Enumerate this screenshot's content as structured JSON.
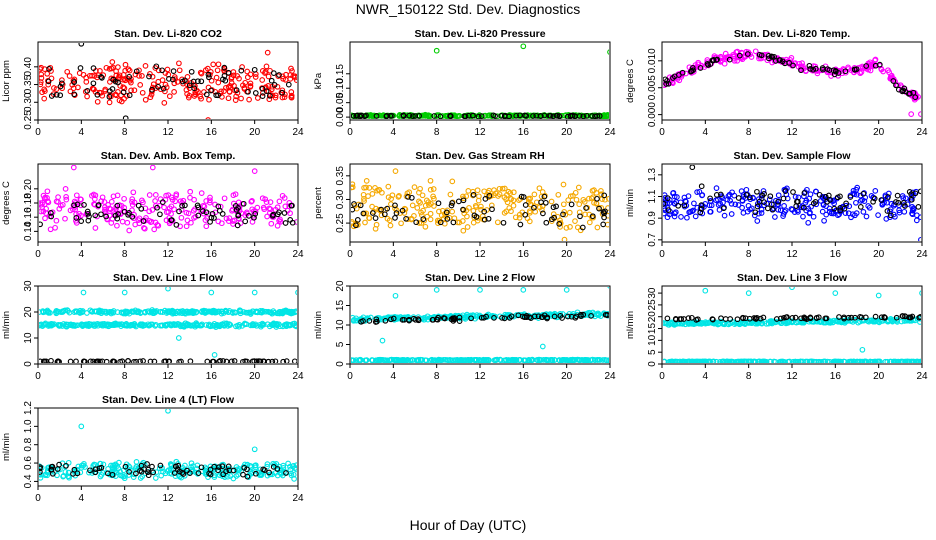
{
  "title": "NWR_150122  Std. Dev. Diagnostics",
  "xlabel": "Hour of Day (UTC)",
  "chart_data": [
    {
      "type": "scatter",
      "title": "Stan. Dev. Li-820 CO2",
      "ylabel": "Licor ppm",
      "xlim": [
        0,
        24
      ],
      "ylim": [
        0.25,
        0.47
      ],
      "yticks": [
        0.25,
        0.3,
        0.35,
        0.4
      ],
      "ytick_labels": [
        "0.25",
        "0.30",
        "0.35",
        "0.40"
      ],
      "xticks": [
        0,
        4,
        8,
        12,
        16,
        20,
        24
      ],
      "series": [
        {
          "color": "#ff0000",
          "pattern": {
            "kind": "band",
            "base": 0.355,
            "spread": 0.045,
            "noise": 0.02
          }
        },
        {
          "color": "#000000",
          "pattern": {
            "kind": "band",
            "base": 0.355,
            "spread": 0.04,
            "noise": 0.015
          },
          "sparse": true
        }
      ],
      "outliers": [
        {
          "x": 4.0,
          "y": 0.465,
          "color": "#000000"
        },
        {
          "x": 8.1,
          "y": 0.255,
          "color": "#000000"
        },
        {
          "x": 15.7,
          "y": 0.25,
          "color": "#ff0000"
        },
        {
          "x": 21.2,
          "y": 0.44,
          "color": "#ff0000"
        }
      ]
    },
    {
      "type": "scatter",
      "title": "Stan. Dev. Li-820 Pressure",
      "ylabel": "kPa",
      "xlim": [
        0,
        24
      ],
      "ylim": [
        -0.01,
        0.26
      ],
      "yticks": [
        0.0,
        0.05,
        0.1,
        0.15
      ],
      "ytick_labels": [
        "0.00",
        "0.05",
        "0.10",
        "0.15"
      ],
      "xticks": [
        0,
        4,
        8,
        12,
        16,
        20,
        24
      ],
      "series": [
        {
          "color": "#00cc00",
          "pattern": {
            "kind": "flat",
            "base": 0.005,
            "noise": 0.002
          }
        },
        {
          "color": "#000000",
          "pattern": {
            "kind": "flat",
            "base": 0.004,
            "noise": 0.002
          },
          "sparse": true
        }
      ],
      "outliers": [
        {
          "x": 8.0,
          "y": 0.23,
          "color": "#00cc00"
        },
        {
          "x": 16.0,
          "y": 0.245,
          "color": "#00cc00"
        },
        {
          "x": 24.0,
          "y": 0.225,
          "color": "#00cc00"
        }
      ]
    },
    {
      "type": "scatter",
      "title": "Stan. Dev. Li-820 Temp.",
      "ylabel": "degrees C",
      "xlim": [
        0,
        24
      ],
      "ylim": [
        -0.001,
        0.0135
      ],
      "yticks": [
        0.0,
        0.005,
        0.01
      ],
      "ytick_labels": [
        "0.000",
        "0.005",
        "0.010"
      ],
      "xticks": [
        0,
        4,
        8,
        12,
        16,
        20,
        24
      ],
      "series": [
        {
          "color": "#ff00ff",
          "pattern": {
            "kind": "temp",
            "noise": 0.0007
          }
        },
        {
          "color": "#000000",
          "pattern": {
            "kind": "temp",
            "noise": 0.0005
          },
          "sparse": true
        }
      ],
      "outliers": [
        {
          "x": 23.0,
          "y": 0.0001,
          "color": "#ff00ff"
        },
        {
          "x": 23.9,
          "y": 0.0001,
          "color": "#ff00ff"
        }
      ]
    },
    {
      "type": "scatter",
      "title": "Stan. Dev. Amb. Box Temp.",
      "ylabel": "degrees C",
      "xlim": [
        0,
        24
      ],
      "ylim": [
        0.125,
        0.235
      ],
      "yticks": [
        0.14,
        0.16,
        0.18,
        0.2
      ],
      "ytick_labels": [
        "0.14",
        "0.16",
        "0.18",
        "0.20"
      ],
      "xticks": [
        0,
        4,
        8,
        12,
        16,
        20,
        24
      ],
      "series": [
        {
          "color": "#ff00ff",
          "pattern": {
            "kind": "band",
            "base": 0.17,
            "spread": 0.02,
            "noise": 0.012
          }
        },
        {
          "color": "#000000",
          "pattern": {
            "kind": "band",
            "base": 0.165,
            "spread": 0.015,
            "noise": 0.01
          },
          "sparse": true
        }
      ],
      "outliers": [
        {
          "x": 3.3,
          "y": 0.23,
          "color": "#ff00ff"
        },
        {
          "x": 10.6,
          "y": 0.23,
          "color": "#ff00ff"
        },
        {
          "x": 20.0,
          "y": 0.225,
          "color": "#ff00ff"
        }
      ]
    },
    {
      "type": "scatter",
      "title": "Stan. Dev. Gas Stream RH",
      "ylabel": "percent",
      "xlim": [
        0,
        24
      ],
      "ylim": [
        0.21,
        0.375
      ],
      "yticks": [
        0.25,
        0.3,
        0.35
      ],
      "ytick_labels": [
        "0.25",
        "0.30",
        "0.35"
      ],
      "xticks": [
        0,
        4,
        8,
        12,
        16,
        20,
        24
      ],
      "series": [
        {
          "color": "#f5a800",
          "pattern": {
            "kind": "band",
            "base": 0.285,
            "spread": 0.04,
            "noise": 0.02
          }
        },
        {
          "color": "#000000",
          "pattern": {
            "kind": "band",
            "base": 0.28,
            "spread": 0.03,
            "noise": 0.015
          },
          "sparse": true
        }
      ],
      "outliers": [
        {
          "x": 4.2,
          "y": 0.36,
          "color": "#f5a800"
        },
        {
          "x": 19.8,
          "y": 0.215,
          "color": "#f5a800"
        }
      ]
    },
    {
      "type": "scatter",
      "title": "Stan. Dev. Sample Flow",
      "ylabel": "ml/min",
      "xlim": [
        0,
        24
      ],
      "ylim": [
        0.68,
        1.4
      ],
      "yticks": [
        0.7,
        0.9,
        1.1,
        1.3
      ],
      "ytick_labels": [
        "0.7",
        "0.9",
        "1.1",
        "1.3"
      ],
      "xticks": [
        0,
        4,
        8,
        12,
        16,
        20,
        24
      ],
      "series": [
        {
          "color": "#0000ff",
          "pattern": {
            "kind": "band",
            "base": 1.02,
            "spread": 0.12,
            "noise": 0.07
          }
        },
        {
          "color": "#000000",
          "pattern": {
            "kind": "band",
            "base": 1.06,
            "spread": 0.1,
            "noise": 0.06
          },
          "sparse": true
        }
      ],
      "outliers": [
        {
          "x": 2.8,
          "y": 1.37,
          "color": "#000000"
        },
        {
          "x": 23.9,
          "y": 0.7,
          "color": "#0000ff"
        }
      ]
    },
    {
      "type": "scatter",
      "title": "Stan. Dev. Line 1 Flow",
      "ylabel": "ml/min",
      "xlim": [
        0,
        24
      ],
      "ylim": [
        0,
        30
      ],
      "yticks": [
        0,
        10,
        20,
        30
      ],
      "ytick_labels": [
        "0",
        "10",
        "20",
        "30"
      ],
      "xticks": [
        0,
        4,
        8,
        12,
        16,
        20,
        24
      ],
      "series": [
        {
          "color": "#00e5e5",
          "pattern": {
            "kind": "flat",
            "base": 20,
            "noise": 0.5
          }
        },
        {
          "color": "#00e5e5",
          "pattern": {
            "kind": "flat",
            "base": 15,
            "noise": 0.5
          }
        },
        {
          "color": "#000000",
          "pattern": {
            "kind": "flat",
            "base": 1,
            "noise": 0.15
          },
          "sparse": true
        }
      ],
      "outliers": [
        {
          "x": 4.2,
          "y": 27.5,
          "color": "#00e5e5"
        },
        {
          "x": 8.0,
          "y": 27.5,
          "color": "#00e5e5"
        },
        {
          "x": 12.0,
          "y": 29,
          "color": "#00e5e5"
        },
        {
          "x": 16.0,
          "y": 27.5,
          "color": "#00e5e5"
        },
        {
          "x": 20.0,
          "y": 27.5,
          "color": "#00e5e5"
        },
        {
          "x": 24.0,
          "y": 27.5,
          "color": "#00e5e5"
        },
        {
          "x": 13.0,
          "y": 10,
          "color": "#00e5e5"
        },
        {
          "x": 16.3,
          "y": 3.5,
          "color": "#00e5e5"
        }
      ]
    },
    {
      "type": "scatter",
      "title": "Stan. Dev. Line 2 Flow",
      "ylabel": "ml/min",
      "xlim": [
        0,
        24
      ],
      "ylim": [
        0,
        20
      ],
      "yticks": [
        0,
        5,
        10,
        15,
        20
      ],
      "ytick_labels": [
        "0",
        "5",
        "10",
        "15",
        "20"
      ],
      "xticks": [
        0,
        4,
        8,
        12,
        16,
        20,
        24
      ],
      "series": [
        {
          "color": "#00e5e5",
          "pattern": {
            "kind": "rise",
            "base": 11.5,
            "end": 12.8,
            "noise": 0.4
          }
        },
        {
          "color": "#00e5e5",
          "pattern": {
            "kind": "flat",
            "base": 1,
            "noise": 0.1
          }
        },
        {
          "color": "#000000",
          "pattern": {
            "kind": "rise",
            "base": 11,
            "end": 12.5,
            "noise": 0.4
          },
          "sparse": true
        }
      ],
      "outliers": [
        {
          "x": 4.2,
          "y": 17.5,
          "color": "#00e5e5"
        },
        {
          "x": 8.0,
          "y": 19,
          "color": "#00e5e5"
        },
        {
          "x": 12.0,
          "y": 19,
          "color": "#00e5e5"
        },
        {
          "x": 16.0,
          "y": 19,
          "color": "#00e5e5"
        },
        {
          "x": 20.0,
          "y": 19,
          "color": "#00e5e5"
        },
        {
          "x": 24.0,
          "y": 20,
          "color": "#00e5e5"
        },
        {
          "x": 3.0,
          "y": 6,
          "color": "#00e5e5"
        },
        {
          "x": 17.8,
          "y": 4.5,
          "color": "#00e5e5"
        }
      ]
    },
    {
      "type": "scatter",
      "title": "Stan. Dev. Line 3 Flow",
      "ylabel": "ml/min",
      "xlim": [
        0,
        24
      ],
      "ylim": [
        0,
        33
      ],
      "yticks": [
        0,
        5,
        10,
        15,
        20,
        25,
        30
      ],
      "ytick_labels": [
        "0",
        "5",
        "10",
        "15",
        "20",
        "25",
        "30"
      ],
      "xticks": [
        0,
        4,
        8,
        12,
        16,
        20,
        24
      ],
      "series": [
        {
          "color": "#00e5e5",
          "pattern": {
            "kind": "rise",
            "base": 17,
            "end": 18.5,
            "noise": 0.5
          }
        },
        {
          "color": "#00e5e5",
          "pattern": {
            "kind": "flat",
            "base": 1,
            "noise": 0.1
          }
        },
        {
          "color": "#000000",
          "pattern": {
            "kind": "rise",
            "base": 19,
            "end": 20,
            "noise": 0.4
          },
          "sparse": true
        }
      ],
      "outliers": [
        {
          "x": 4.0,
          "y": 31,
          "color": "#00e5e5"
        },
        {
          "x": 8.0,
          "y": 30,
          "color": "#00e5e5"
        },
        {
          "x": 12.0,
          "y": 32.5,
          "color": "#00e5e5"
        },
        {
          "x": 16.0,
          "y": 30,
          "color": "#00e5e5"
        },
        {
          "x": 20.0,
          "y": 29,
          "color": "#00e5e5"
        },
        {
          "x": 24.0,
          "y": 30,
          "color": "#00e5e5"
        },
        {
          "x": 18.5,
          "y": 6,
          "color": "#00e5e5"
        }
      ]
    },
    {
      "type": "scatter",
      "title": "Stan. Dev. Line 4 (LT) Flow",
      "ylabel": "ml/min",
      "xlim": [
        0,
        24
      ],
      "ylim": [
        0.35,
        1.2
      ],
      "yticks": [
        0.4,
        0.6,
        0.8,
        1.0,
        1.2
      ],
      "ytick_labels": [
        "0.4",
        "0.6",
        "0.8",
        "1.0",
        "1.2"
      ],
      "xticks": [
        0,
        4,
        8,
        12,
        16,
        20,
        24
      ],
      "series": [
        {
          "color": "#00e5e5",
          "pattern": {
            "kind": "band",
            "base": 0.52,
            "spread": 0.07,
            "noise": 0.04
          }
        },
        {
          "color": "#000000",
          "pattern": {
            "kind": "band",
            "base": 0.52,
            "spread": 0.06,
            "noise": 0.03
          },
          "sparse": true
        }
      ],
      "outliers": [
        {
          "x": 4.0,
          "y": 1.0,
          "color": "#00e5e5"
        },
        {
          "x": 12.0,
          "y": 1.17,
          "color": "#00e5e5"
        },
        {
          "x": 20.0,
          "y": 0.75,
          "color": "#00e5e5"
        }
      ]
    }
  ]
}
